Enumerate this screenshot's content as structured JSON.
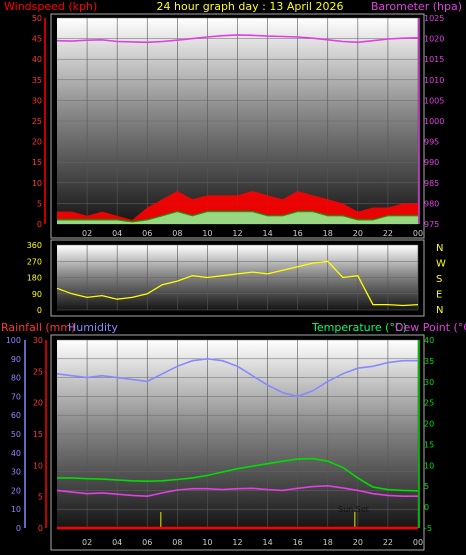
{
  "title": "24 hour graph day : 13 April 2026",
  "colors": {
    "wind": "#ff0000",
    "gust": "#ff0000",
    "windavg": "#90ee90",
    "baro": "#e040e0",
    "winddir": "#ffff00",
    "rain": "#ff0000",
    "humidity": "#8888ff",
    "temperature": "#00dd00",
    "dewpoint": "#e040e0",
    "sun": "#cccc00"
  },
  "chart_data": [
    {
      "type": "area",
      "ylabel": "Windspeed (kph)",
      "ylabel_right": "Barometer (hpa)",
      "ylim": [
        0,
        50
      ],
      "ylim_right": [
        975,
        1025
      ],
      "yticks": [
        "0",
        "5",
        "10",
        "15",
        "20",
        "25",
        "30",
        "35",
        "40",
        "45",
        "50"
      ],
      "yticks_right": [
        "975",
        "980",
        "985",
        "990",
        "995",
        "1000",
        "1005",
        "1010",
        "1015",
        "1020",
        "1025"
      ],
      "xticks": [
        "02",
        "04",
        "06",
        "08",
        "10",
        "12",
        "14",
        "16",
        "18",
        "20",
        "22",
        "00"
      ],
      "x": [
        0,
        1,
        2,
        3,
        4,
        5,
        6,
        7,
        8,
        9,
        10,
        11,
        12,
        13,
        14,
        15,
        16,
        17,
        18,
        19,
        20,
        21,
        22,
        23,
        24
      ],
      "series": [
        {
          "key": "gust",
          "color": "gust",
          "values": [
            3,
            3,
            2,
            3,
            2,
            1,
            4,
            6,
            8,
            6,
            7,
            7,
            7,
            8,
            7,
            6,
            8,
            7,
            6,
            5,
            3,
            4,
            4,
            5,
            5
          ]
        },
        {
          "key": "wind",
          "color": "windavg",
          "values": [
            1,
            1,
            1,
            1,
            1,
            0.5,
            1,
            2,
            3,
            2,
            3,
            3,
            3,
            3,
            2,
            2,
            3,
            3,
            2,
            2,
            1,
            1,
            2,
            2,
            2
          ]
        },
        {
          "key": "baro",
          "color": "baro",
          "axis": "right",
          "values": [
            1019.5,
            1019.4,
            1019.6,
            1019.7,
            1019.3,
            1019.2,
            1019.1,
            1019.3,
            1019.6,
            1020.0,
            1020.4,
            1020.7,
            1020.9,
            1020.8,
            1020.6,
            1020.5,
            1020.4,
            1020.1,
            1019.7,
            1019.3,
            1019.1,
            1019.5,
            1019.9,
            1020.1,
            1020.2
          ]
        }
      ]
    },
    {
      "type": "line",
      "ylim": [
        0,
        360
      ],
      "yticks": [
        "0",
        "90",
        "180",
        "270",
        "360"
      ],
      "compass": [
        "N",
        "W",
        "S",
        "E",
        "N"
      ],
      "x": [
        0,
        1,
        2,
        3,
        4,
        5,
        6,
        7,
        8,
        9,
        10,
        11,
        12,
        13,
        14,
        15,
        16,
        17,
        18,
        19,
        20,
        21,
        22,
        23,
        24
      ],
      "series": [
        {
          "key": "winddir",
          "color": "winddir",
          "values": [
            120,
            90,
            70,
            80,
            60,
            70,
            90,
            140,
            160,
            190,
            180,
            190,
            200,
            210,
            200,
            220,
            240,
            260,
            270,
            180,
            190,
            30,
            30,
            25,
            30
          ]
        }
      ]
    },
    {
      "type": "line",
      "ylabel": "Rainfall (mm)",
      "ylabel2": "Humidity",
      "ylabel_right": "Temperature (°C)",
      "ylabel_right2": "Dew Point (°C)",
      "ylim_humidity": [
        0,
        100
      ],
      "ylim_rain": [
        0,
        30
      ],
      "ylim_temp": [
        -5,
        40
      ],
      "yticks_humidity": [
        "0",
        "10",
        "20",
        "30",
        "40",
        "50",
        "60",
        "70",
        "80",
        "90",
        "100"
      ],
      "yticks_rain": [
        "0",
        "5",
        "10",
        "15",
        "20",
        "25",
        "30"
      ],
      "yticks_temp": [
        "-5",
        "0",
        "5",
        "10",
        "15",
        "20",
        "25",
        "30",
        "35",
        "40"
      ],
      "xticks": [
        "02",
        "04",
        "06",
        "08",
        "10",
        "12",
        "14",
        "16",
        "18",
        "20",
        "22",
        "00"
      ],
      "annotation": "Sun Set",
      "sun_lines": [
        6.9,
        19.8
      ],
      "x": [
        0,
        1,
        2,
        3,
        4,
        5,
        6,
        7,
        8,
        9,
        10,
        11,
        12,
        13,
        14,
        15,
        16,
        17,
        18,
        19,
        20,
        21,
        22,
        23,
        24
      ],
      "series": [
        {
          "key": "humidity",
          "color": "humidity",
          "axis": "humidity",
          "values": [
            82,
            81,
            80,
            81,
            80,
            79,
            78,
            82,
            86,
            89,
            90,
            89,
            86,
            81,
            76,
            72,
            70,
            73,
            78,
            82,
            85,
            86,
            88,
            89,
            89
          ]
        },
        {
          "key": "temperature",
          "color": "temperature",
          "axis": "temp",
          "values": [
            7,
            7,
            6.8,
            6.7,
            6.5,
            6.3,
            6.2,
            6.3,
            6.6,
            7,
            7.6,
            8.4,
            9.2,
            9.8,
            10.4,
            11,
            11.5,
            11.6,
            11,
            9.5,
            7,
            4.8,
            4.2,
            4,
            3.9
          ]
        },
        {
          "key": "dewpoint",
          "color": "dewpoint",
          "axis": "temp",
          "values": [
            4,
            3.6,
            3.2,
            3.4,
            3.1,
            2.8,
            2.6,
            3.4,
            4.1,
            4.4,
            4.4,
            4.2,
            4.4,
            4.5,
            4.2,
            4,
            4.5,
            4.9,
            5.1,
            4.6,
            4,
            3.2,
            2.8,
            2.6,
            2.6
          ]
        },
        {
          "key": "rain",
          "color": "rain",
          "axis": "rain",
          "values": [
            0,
            0,
            0,
            0,
            0,
            0,
            0,
            0,
            0,
            0,
            0,
            0,
            0,
            0,
            0,
            0,
            0,
            0,
            0,
            0,
            0,
            0,
            0,
            0,
            0
          ]
        }
      ]
    }
  ]
}
